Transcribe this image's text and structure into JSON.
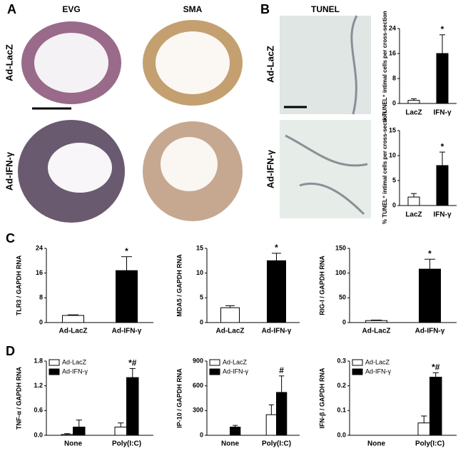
{
  "figure": {
    "panel_letters": [
      "A",
      "B",
      "C",
      "D"
    ],
    "columns": [
      "EVG",
      "SMA",
      "TUNEL"
    ],
    "rows_A": [
      "Ad-LacZ",
      "Ad-IFN-γ"
    ],
    "rows_B": [
      "Ad-LacZ",
      "Ad-IFN-γ"
    ]
  },
  "chart_data": [
    {
      "type": "bar",
      "y_label": "# TUNEL⁺ intimal cells per cross-section",
      "categories": [
        "LacZ",
        "IFN-γ"
      ],
      "values": [
        1,
        16
      ],
      "errors": [
        0.5,
        6
      ],
      "annotations": [
        null,
        "*"
      ],
      "colors": [
        "#ffffff",
        "#000000"
      ],
      "ylim": [
        0,
        24
      ],
      "yticks": [
        0,
        8,
        16,
        24
      ]
    },
    {
      "type": "bar",
      "y_label": "% TUNEL⁺ intimal cells per cross-section",
      "categories": [
        "LacZ",
        "IFN-γ"
      ],
      "values": [
        1.7,
        8
      ],
      "errors": [
        0.7,
        2.7
      ],
      "annotations": [
        null,
        "*"
      ],
      "colors": [
        "#ffffff",
        "#000000"
      ],
      "ylim": [
        0,
        15
      ],
      "yticks": [
        0,
        5,
        10,
        15
      ]
    },
    {
      "type": "bar",
      "y_label": "TLR3 / GAPDH RNA",
      "categories": [
        "Ad-LacZ",
        "Ad-IFN-γ"
      ],
      "values": [
        2.3,
        16.8
      ],
      "errors": [
        0.2,
        4.5
      ],
      "annotations": [
        null,
        "*"
      ],
      "colors": [
        "#ffffff",
        "#000000"
      ],
      "ylim": [
        0,
        24
      ],
      "yticks": [
        0,
        8,
        16,
        24
      ]
    },
    {
      "type": "bar",
      "y_label": "MDA5 / GAPDH RNA",
      "categories": [
        "Ad-LacZ",
        "Ad-IFN-γ"
      ],
      "values": [
        3.0,
        12.5
      ],
      "errors": [
        0.4,
        1.5
      ],
      "annotations": [
        null,
        "*"
      ],
      "colors": [
        "#ffffff",
        "#000000"
      ],
      "ylim": [
        0,
        15
      ],
      "yticks": [
        0,
        5,
        10,
        15
      ]
    },
    {
      "type": "bar",
      "y_label": "RIG-I / GAPDH RNA",
      "categories": [
        "Ad-LacZ",
        "Ad-IFN-γ"
      ],
      "values": [
        4,
        108
      ],
      "errors": [
        1,
        20
      ],
      "annotations": [
        null,
        "*"
      ],
      "colors": [
        "#ffffff",
        "#000000"
      ],
      "ylim": [
        0,
        150
      ],
      "yticks": [
        0,
        50,
        100,
        150
      ]
    },
    {
      "type": "grouped_bar",
      "y_label": "TNF-α / GAPDH RNA",
      "categories": [
        "None",
        "Poly(I:C)"
      ],
      "series": [
        {
          "name": "Ad-LacZ",
          "color": "#ffffff",
          "values": [
            0.02,
            0.2
          ],
          "errors": [
            0.02,
            0.1
          ],
          "annotations": [
            null,
            null
          ]
        },
        {
          "name": "Ad-IFN-γ",
          "color": "#000000",
          "values": [
            0.2,
            1.4
          ],
          "errors": [
            0.17,
            0.22
          ],
          "annotations": [
            null,
            "*#"
          ]
        }
      ],
      "ylim": [
        0,
        1.8
      ],
      "yticks": [
        {
          "value": 0,
          "label": "0.0"
        },
        0.6,
        1.2,
        1.8
      ]
    },
    {
      "type": "grouped_bar",
      "y_label": "IP-10 / GAPDH RNA",
      "categories": [
        "None",
        "Poly(I:C)"
      ],
      "series": [
        {
          "name": "Ad-LacZ",
          "color": "#ffffff",
          "values": [
            null,
            250
          ],
          "errors": [
            null,
            120
          ],
          "annotations": [
            null,
            null
          ]
        },
        {
          "name": "Ad-IFN-γ",
          "color": "#000000",
          "values": [
            100,
            520
          ],
          "errors": [
            20,
            200
          ],
          "annotations": [
            null,
            "#"
          ]
        }
      ],
      "ylim": [
        0,
        900
      ],
      "yticks": [
        0,
        300,
        600,
        900
      ]
    },
    {
      "type": "grouped_bar",
      "y_label": "IFN-β / GAPDH RNA",
      "categories": [
        "None",
        "Poly(I:C)"
      ],
      "series": [
        {
          "name": "Ad-LacZ",
          "color": "#ffffff",
          "values": [
            null,
            0.05
          ],
          "errors": [
            null,
            0.028
          ],
          "annotations": [
            null,
            null
          ]
        },
        {
          "name": "Ad-IFN-γ",
          "color": "#000000",
          "values": [
            null,
            0.235
          ],
          "errors": [
            null,
            0.018
          ],
          "annotations": [
            null,
            "*#"
          ]
        }
      ],
      "ylim": [
        0,
        0.3
      ],
      "yticks": [
        {
          "value": 0,
          "label": "0.0"
        },
        0.1,
        0.2,
        0.3
      ]
    }
  ]
}
